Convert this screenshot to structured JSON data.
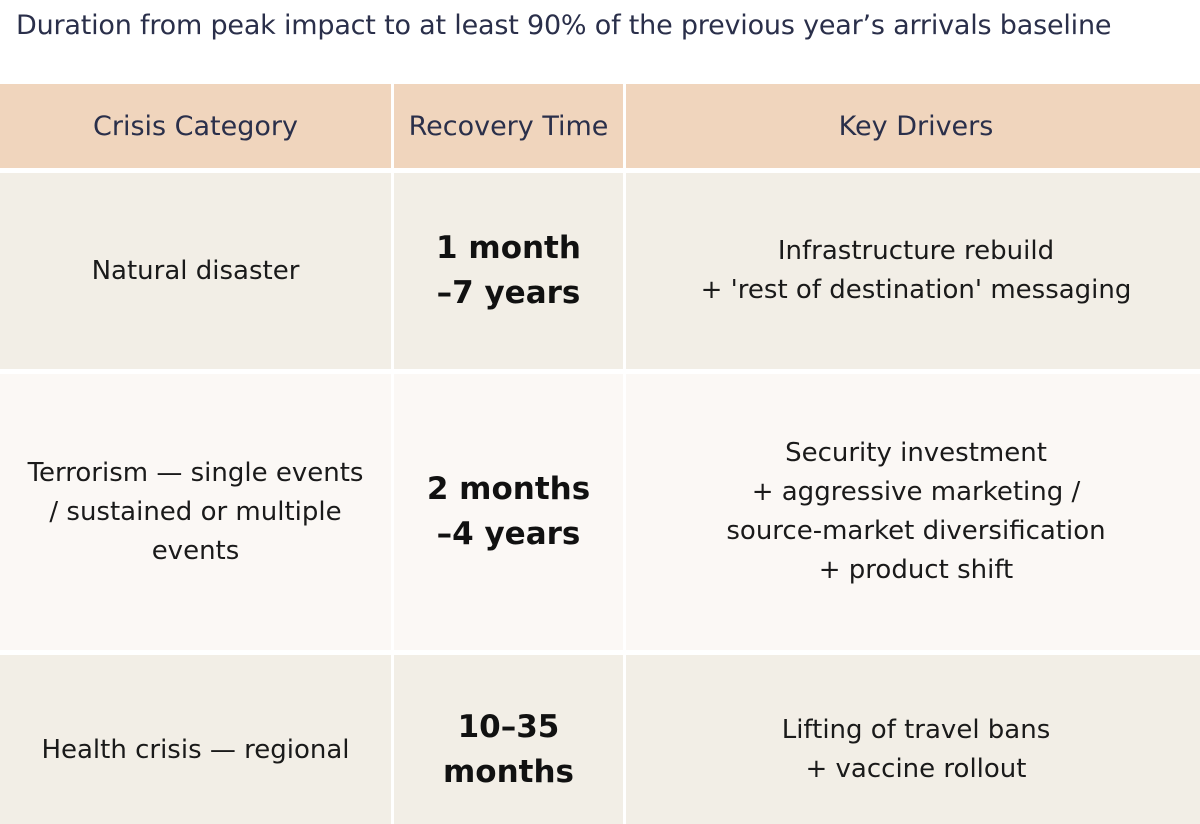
{
  "subtitle": "Duration from peak impact to at least 90% of the previous year’s arrivals baseline",
  "table": {
    "headers": [
      "Crisis Category",
      "Recovery Time",
      "Key Drivers"
    ],
    "rows": [
      {
        "category": "Natural disaster",
        "recovery_time": "1 month\n–7 years",
        "drivers": "Infrastructure rebuild\n+ 'rest of destination' messaging"
      },
      {
        "category": "Terrorism — single events / sustained or multiple events",
        "recovery_time": "2 months\n–4 years",
        "drivers": "Security investment\n+ aggressive marketing /\nsource-market diversification\n+ product shift"
      },
      {
        "category": "Health crisis — regional",
        "recovery_time": "10–35\nmonths",
        "drivers": "Lifting of travel bans\n+ vaccine rollout"
      }
    ]
  },
  "colors": {
    "header_bg": "#f0d5bd",
    "row_odd_bg": "#f2eee6",
    "row_even_bg": "#fbf8f5",
    "subtitle_text": "#2a2f4a"
  }
}
